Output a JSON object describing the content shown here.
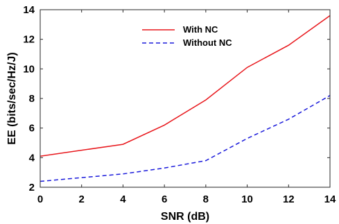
{
  "chart_data": {
    "type": "line",
    "title": "",
    "xlabel": "SNR (dB)",
    "ylabel": "EE (bits/sec/Hz/J)",
    "xlim": [
      0,
      14
    ],
    "ylim": [
      2,
      14
    ],
    "x_ticks": [
      0,
      2,
      4,
      6,
      8,
      10,
      12,
      14
    ],
    "y_ticks": [
      2,
      4,
      6,
      8,
      10,
      12,
      14
    ],
    "grid": false,
    "legend_position": "top-center",
    "x": [
      0,
      4,
      6,
      8,
      10,
      12,
      14
    ],
    "series": [
      {
        "name": "With NC",
        "color": "#e8161b",
        "dash": "solid",
        "values": [
          4.1,
          4.9,
          6.2,
          7.9,
          10.1,
          11.6,
          13.6
        ]
      },
      {
        "name": "Without NC",
        "color": "#1a1adb",
        "dash": "dashed",
        "values": [
          2.4,
          2.9,
          3.3,
          3.8,
          5.3,
          6.6,
          8.2
        ]
      }
    ]
  }
}
